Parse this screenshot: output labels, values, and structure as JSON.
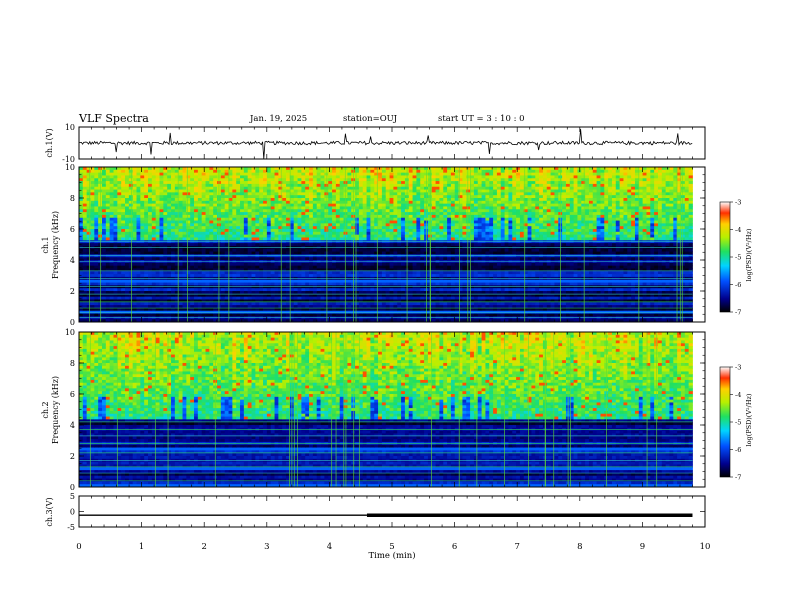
{
  "header": {
    "title": "VLF Spectra",
    "date": "Jan. 19, 2025",
    "station": "station=OUJ",
    "start": "start UT =  3 : 10 : 0"
  },
  "chart_data": [
    {
      "type": "line",
      "panel": "ch1-waveform",
      "ylabel": "ch.1(V)",
      "ylim": [
        -10,
        10
      ],
      "ytick_labels": [
        "10",
        "-10"
      ],
      "x": [
        0,
        9.8
      ],
      "baseline": [
        0,
        0
      ],
      "description_values": "noisy waveform around 0 V with sparse spikes"
    },
    {
      "type": "heatmap",
      "panel": "ch1-spectrogram",
      "ylabel": "ch.1\nFrequency (kHz)",
      "ylabel_line1": "ch.1",
      "ylabel_line2": "Frequency (kHz)",
      "ylim": [
        0,
        10
      ],
      "ytick_labels": [
        "0",
        "2",
        "4",
        "6",
        "8",
        "10"
      ],
      "xlim": [
        0,
        10
      ],
      "colorbar": {
        "label": "log(PSD)(V²/Hz)",
        "range": [
          -7,
          -3
        ],
        "tick_labels": [
          "-3",
          "-4",
          "-5",
          "-6",
          "-7"
        ]
      }
    },
    {
      "type": "heatmap",
      "panel": "ch2-spectrogram",
      "ylabel_line1": "ch.2",
      "ylabel_line2": "Frequency (kHz)",
      "ylim": [
        0,
        10
      ],
      "ytick_labels": [
        "0",
        "2",
        "4",
        "6",
        "8",
        "10"
      ],
      "xlim": [
        0,
        10
      ],
      "colorbar": {
        "label": "log(PSD)(V²/Hz)",
        "range": [
          -7,
          -3
        ],
        "tick_labels": [
          "-3",
          "-4",
          "-5",
          "-6",
          "-7"
        ]
      }
    },
    {
      "type": "line",
      "panel": "ch3-level",
      "ylabel": "ch.3(V)",
      "ylim": [
        -5,
        5
      ],
      "ytick_labels": [
        "5",
        "0",
        "-5"
      ],
      "x": [
        0,
        4.6,
        4.6,
        9.8
      ],
      "y": [
        -1.2,
        -1.2,
        -1.2,
        -1.2
      ],
      "segments": [
        {
          "x0": 0,
          "x1": 4.6,
          "weight": "thin"
        },
        {
          "x0": 4.6,
          "x1": 9.8,
          "weight": "thick"
        }
      ]
    }
  ],
  "xaxis": {
    "label": "Time (min)",
    "range": [
      0,
      10
    ],
    "tick_labels": [
      "0",
      "1",
      "2",
      "3",
      "4",
      "5",
      "6",
      "7",
      "8",
      "9",
      "10"
    ]
  }
}
